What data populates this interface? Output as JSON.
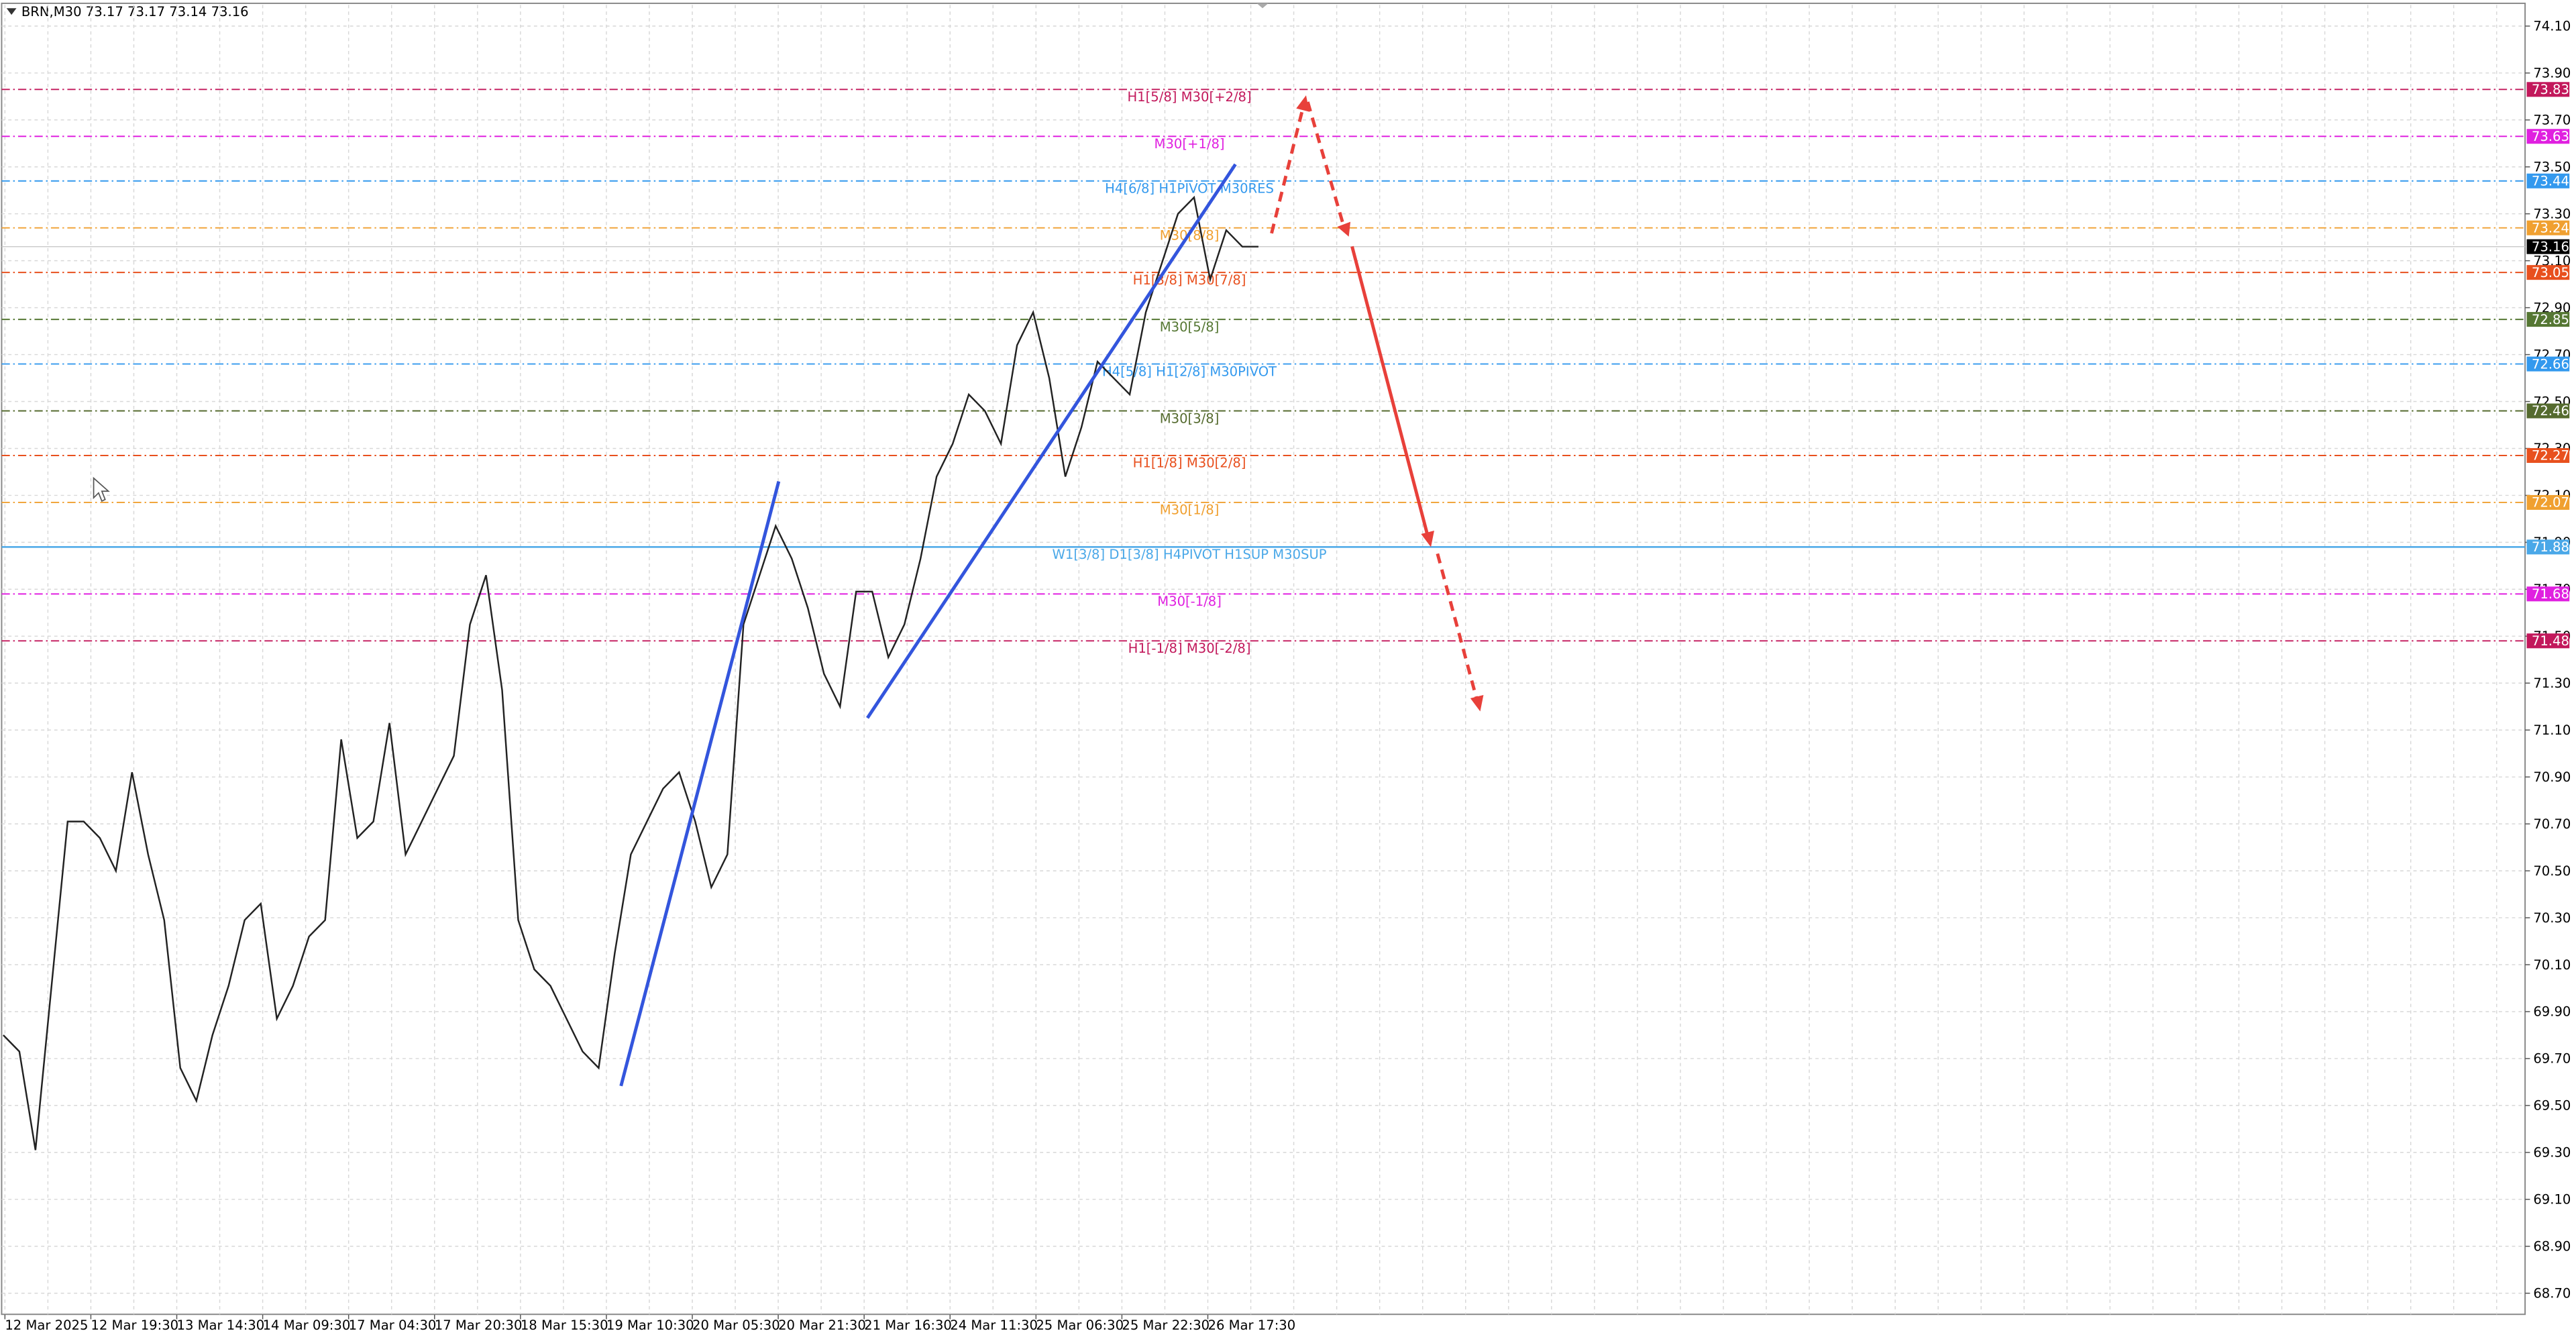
{
  "chart_data": {
    "type": "line",
    "title": "BRN,M30  73.17 73.17 73.14 73.16",
    "xticks": [
      "12 Mar 2025",
      "12 Mar 19:30",
      "13 Mar 14:30",
      "14 Mar 09:30",
      "17 Mar 04:30",
      "17 Mar 20:30",
      "18 Mar 15:30",
      "19 Mar 10:30",
      "20 Mar 05:30",
      "20 Mar 21:30",
      "21 Mar 16:30",
      "24 Mar 11:30",
      "25 Mar 06:30",
      "25 Mar 22:30",
      "26 Mar 17:30"
    ],
    "color": "#222222",
    "values": [
      69.8,
      69.73,
      69.31,
      70.01,
      70.71,
      70.71,
      70.64,
      70.5,
      70.92,
      70.57,
      70.29,
      69.66,
      69.52,
      69.8,
      70.01,
      70.29,
      70.36,
      69.87,
      70.01,
      70.22,
      70.29,
      71.06,
      70.64,
      70.71,
      71.13,
      70.57,
      70.71,
      70.85,
      70.99,
      71.55,
      71.76,
      71.27,
      70.29,
      70.08,
      70.01,
      69.87,
      69.73,
      69.66,
      70.15,
      70.57,
      70.71,
      70.85,
      70.92,
      70.71,
      70.43,
      70.57,
      71.55,
      71.76,
      71.97,
      71.83,
      71.62,
      71.34,
      71.2,
      71.69,
      71.69,
      71.41,
      71.55,
      71.83,
      72.18,
      72.32,
      72.53,
      72.46,
      72.32,
      72.74,
      72.88,
      72.6,
      72.18,
      72.39,
      72.67,
      72.6,
      72.53,
      72.88,
      73.09,
      73.3,
      73.37,
      73.02,
      73.23,
      73.16,
      73.16
    ],
    "ylim": [
      68.61,
      74.19
    ],
    "yticks": [
      {
        "value": 68.7,
        "label": "68.70"
      },
      {
        "value": 68.9,
        "label": "68.90"
      },
      {
        "value": 69.1,
        "label": "69.10"
      },
      {
        "value": 69.3,
        "label": "69.30"
      },
      {
        "value": 69.5,
        "label": "69.50"
      },
      {
        "value": 69.7,
        "label": "69.70"
      },
      {
        "value": 69.9,
        "label": "69.90"
      },
      {
        "value": 70.1,
        "label": "70.10"
      },
      {
        "value": 70.3,
        "label": "70.30"
      },
      {
        "value": 70.5,
        "label": "70.50"
      },
      {
        "value": 70.7,
        "label": "70.70"
      },
      {
        "value": 70.9,
        "label": "70.90"
      },
      {
        "value": 71.1,
        "label": "71.10"
      },
      {
        "value": 71.3,
        "label": "71.30"
      },
      {
        "value": 71.5,
        "label": "71.50"
      },
      {
        "value": 71.7,
        "label": "71.70"
      },
      {
        "value": 71.9,
        "label": "71.90"
      },
      {
        "value": 72.1,
        "label": "72.10"
      },
      {
        "value": 72.3,
        "label": "72.30"
      },
      {
        "value": 72.5,
        "label": "72.50"
      },
      {
        "value": 72.7,
        "label": "72.70"
      },
      {
        "value": 72.9,
        "label": "72.90"
      },
      {
        "value": 73.1,
        "label": "73.10"
      },
      {
        "value": 73.3,
        "label": "73.30"
      },
      {
        "value": 73.5,
        "label": "73.50"
      },
      {
        "value": 73.7,
        "label": "73.70"
      },
      {
        "value": 73.9,
        "label": "73.90"
      },
      {
        "value": 74.1,
        "label": "74.10"
      }
    ],
    "grid": true,
    "levels": [
      {
        "price": 73.83,
        "label": "H1[5/8] M30[+2/8]",
        "color": "#c2185b",
        "dashed": true
      },
      {
        "price": 73.63,
        "label": "M30[+1/8]",
        "color": "#e020e0",
        "dashed": true
      },
      {
        "price": 73.44,
        "label": "H4[6/8] H1PIVOT M30RES",
        "color": "#3399ee",
        "dashed": true
      },
      {
        "price": 73.24,
        "label": "M30[8/8]",
        "color": "#f0a030",
        "dashed": true
      },
      {
        "price": 73.05,
        "label": "H1[3/8] M30[7/8]",
        "color": "#e8501e",
        "dashed": true
      },
      {
        "price": 72.85,
        "label": "M30[5/8]",
        "color": "#557733",
        "dashed": true
      },
      {
        "price": 72.66,
        "label": "H4[5/8] H1[2/8] M30PIVOT",
        "color": "#3399ee",
        "dashed": true
      },
      {
        "price": 72.46,
        "label": "M30[3/8]",
        "color": "#556b2f",
        "dashed": true
      },
      {
        "price": 72.27,
        "label": "H1[1/8] M30[2/8]",
        "color": "#e8501e",
        "dashed": true
      },
      {
        "price": 72.07,
        "label": "M30[1/8]",
        "color": "#f0a030",
        "dashed": true
      },
      {
        "price": 71.88,
        "label": "W1[3/8] D1[3/8] H4PIVOT H1SUP M30SUP",
        "color": "#4aa8e8",
        "dashed": false
      },
      {
        "price": 71.68,
        "label": "M30[-1/8]",
        "color": "#e020e0",
        "dashed": true
      },
      {
        "price": 71.48,
        "label": "H1[-1/8] M30[-2/8]",
        "color": "#c2185b",
        "dashed": true
      }
    ],
    "current_price": 73.16
  }
}
